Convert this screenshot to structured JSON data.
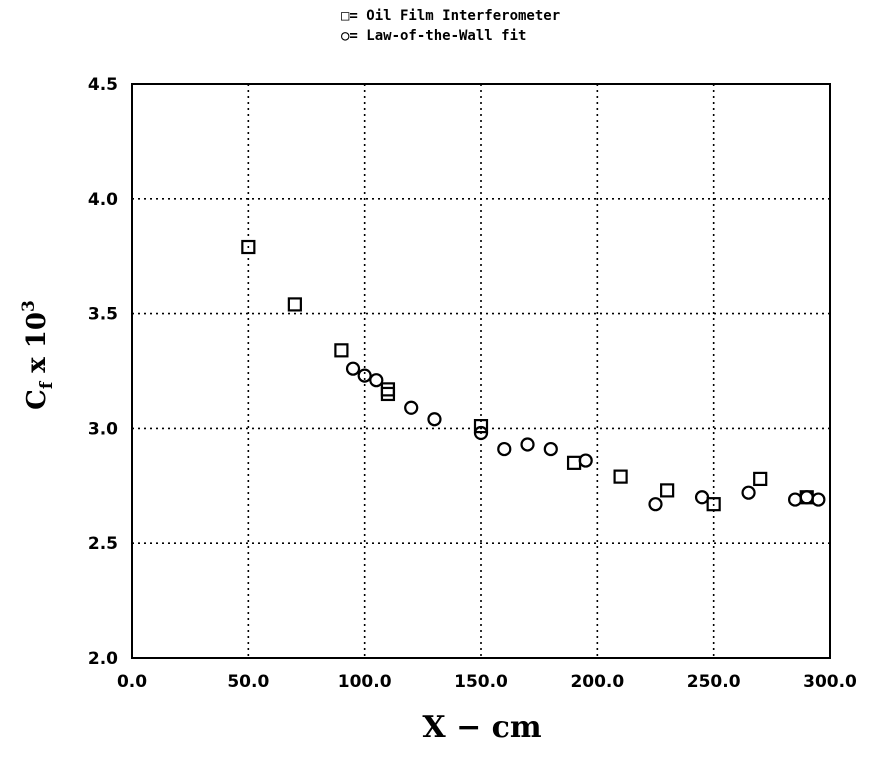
{
  "chart_data": {
    "type": "scatter",
    "title": "",
    "xlabel": "X − cm",
    "ylabel": {
      "base": "C",
      "subscript": "f",
      "middle": " x 10",
      "superscript": "3"
    },
    "xlim": [
      0.0,
      300.0
    ],
    "ylim": [
      2.0,
      4.5
    ],
    "xticks": [
      "0.0",
      "50.0",
      "100.0",
      "150.0",
      "200.0",
      "250.0",
      "300.0"
    ],
    "yticks": [
      "2.0",
      "2.5",
      "3.0",
      "3.5",
      "4.0",
      "4.5"
    ],
    "grid": true,
    "legend_position": "top-center",
    "series": [
      {
        "name": "Oil Film Interferometer",
        "legend_label": "□= Oil Film Interferometer",
        "marker": "square",
        "points": [
          [
            50,
            3.79
          ],
          [
            70,
            3.54
          ],
          [
            90,
            3.34
          ],
          [
            110,
            3.17
          ],
          [
            110,
            3.15
          ],
          [
            150,
            3.01
          ],
          [
            190,
            2.85
          ],
          [
            210,
            2.79
          ],
          [
            230,
            2.73
          ],
          [
            250,
            2.67
          ],
          [
            270,
            2.78
          ],
          [
            290,
            2.7
          ]
        ]
      },
      {
        "name": "Law-of-the-Wall fit",
        "legend_label": "○= Law-of-the-Wall fit",
        "marker": "circle",
        "points": [
          [
            95,
            3.26
          ],
          [
            100,
            3.23
          ],
          [
            105,
            3.21
          ],
          [
            120,
            3.09
          ],
          [
            130,
            3.04
          ],
          [
            150,
            2.98
          ],
          [
            160,
            2.91
          ],
          [
            170,
            2.93
          ],
          [
            180,
            2.91
          ],
          [
            195,
            2.86
          ],
          [
            225,
            2.67
          ],
          [
            245,
            2.7
          ],
          [
            265,
            2.72
          ],
          [
            285,
            2.69
          ],
          [
            290,
            2.7
          ],
          [
            295,
            2.69
          ]
        ]
      }
    ]
  }
}
